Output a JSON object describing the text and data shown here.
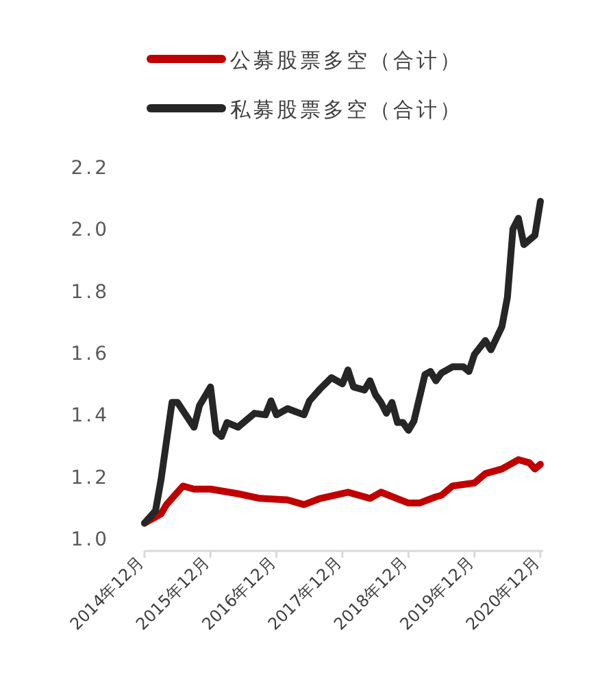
{
  "chart_data": {
    "type": "line",
    "legend": "top",
    "grid": false,
    "marker": "none",
    "line_style": "solid",
    "xlim": [
      "2014-12",
      "2020-12"
    ],
    "xticks": [
      {
        "value": "2014-12",
        "label": "2014年12月"
      },
      {
        "value": "2015-12",
        "label": "2015年12月"
      },
      {
        "value": "2016-12",
        "label": "2016年12月"
      },
      {
        "value": "2017-12",
        "label": "2017年12月"
      },
      {
        "value": "2018-12",
        "label": "2018年12月"
      },
      {
        "value": "2019-12",
        "label": "2019年12月"
      },
      {
        "value": "2020-12",
        "label": "2020年12月"
      }
    ],
    "ylim": [
      1.0,
      2.2
    ],
    "yticks": [
      {
        "value": 1.0,
        "label": "1.0"
      },
      {
        "value": 1.2,
        "label": "1.2"
      },
      {
        "value": 1.4,
        "label": "1.4"
      },
      {
        "value": 1.6,
        "label": "1.6"
      },
      {
        "value": 1.8,
        "label": "1.8"
      },
      {
        "value": 2.0,
        "label": "2.0"
      },
      {
        "value": 2.2,
        "label": "2.2"
      }
    ],
    "series": [
      {
        "name": "公募股票多空（合计）",
        "color": "#c00000",
        "x": [
          "2014-12",
          "2015-03",
          "2015-04",
          "2015-07",
          "2015-09",
          "2015-12",
          "2016-05",
          "2016-09",
          "2017-02",
          "2017-05",
          "2017-08",
          "2018-01",
          "2018-05",
          "2018-07",
          "2018-12",
          "2019-02",
          "2019-05",
          "2019-06",
          "2019-08",
          "2019-12",
          "2020-02",
          "2020-05",
          "2020-08",
          "2020-10",
          "2020-11",
          "2020-12"
        ],
        "values": [
          1.05,
          1.08,
          1.11,
          1.17,
          1.16,
          1.16,
          1.145,
          1.13,
          1.125,
          1.11,
          1.13,
          1.15,
          1.13,
          1.15,
          1.115,
          1.115,
          1.135,
          1.14,
          1.17,
          1.18,
          1.21,
          1.225,
          1.255,
          1.245,
          1.225,
          1.24
        ]
      },
      {
        "name": "私募股票多空（合计）",
        "color": "#262626",
        "x": [
          "2014-12",
          "2015-02",
          "2015-03",
          "2015-05",
          "2015-06",
          "2015-09",
          "2015-10",
          "2015-12",
          "2016-01",
          "2016-02",
          "2016-03",
          "2016-05",
          "2016-08",
          "2016-10",
          "2016-11",
          "2016-12",
          "2017-02",
          "2017-05",
          "2017-06",
          "2017-08",
          "2017-10",
          "2017-12",
          "2018-01",
          "2018-02",
          "2018-04",
          "2018-05",
          "2018-06",
          "2018-07",
          "2018-08",
          "2018-09",
          "2018-10",
          "2018-11",
          "2018-12",
          "2019-01",
          "2019-03",
          "2019-04",
          "2019-05",
          "2019-06",
          "2019-08",
          "2019-10",
          "2019-11",
          "2019-12",
          "2020-02",
          "2020-03",
          "2020-05",
          "2020-06",
          "2020-07",
          "2020-08",
          "2020-09",
          "2020-11",
          "2020-12"
        ],
        "values": [
          1.05,
          1.09,
          1.19,
          1.44,
          1.44,
          1.36,
          1.43,
          1.49,
          1.345,
          1.33,
          1.375,
          1.36,
          1.405,
          1.4,
          1.445,
          1.4,
          1.42,
          1.4,
          1.445,
          1.485,
          1.52,
          1.5,
          1.545,
          1.49,
          1.48,
          1.51,
          1.465,
          1.44,
          1.405,
          1.44,
          1.375,
          1.375,
          1.35,
          1.38,
          1.53,
          1.54,
          1.51,
          1.535,
          1.555,
          1.555,
          1.54,
          1.595,
          1.64,
          1.61,
          1.685,
          1.78,
          2.0,
          2.035,
          1.95,
          1.98,
          2.09
        ]
      }
    ]
  }
}
